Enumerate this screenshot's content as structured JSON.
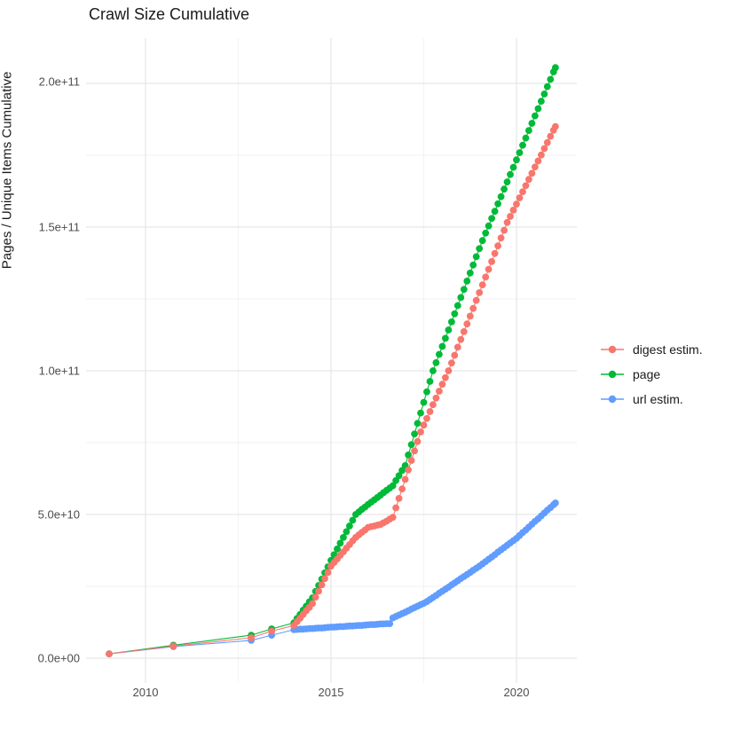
{
  "title": "Crawl Size Cumulative",
  "axes": {
    "y_title": "Pages / Unique Items Cumulative",
    "x_tick_labels": [
      "2010",
      "2015",
      "2020"
    ],
    "y_tick_labels": [
      "0.0e+00",
      "5.0e+10",
      "1.0e+11",
      "1.5e+11",
      "2.0e+11"
    ]
  },
  "legend": {
    "items": [
      {
        "label": "digest estim.",
        "color": "#F8766D"
      },
      {
        "label": "page",
        "color": "#00BA38"
      },
      {
        "label": "url estim.",
        "color": "#619CFF"
      }
    ]
  },
  "style": {
    "background": "#ffffff",
    "major_grid_color": "#e7e7e7",
    "minor_grid_color": "#f2f2f2",
    "tick_text_color": "#4d4d4d",
    "title_color": "#1a1a1a"
  },
  "chart_data": {
    "type": "scatter",
    "title": "Crawl Size Cumulative",
    "xlabel": "",
    "ylabel": "Pages / Unique Items Cumulative",
    "legend_position": "right",
    "grid": true,
    "value_unit": 1000000000.0,
    "x_axis": {
      "major_ticks": [
        2010,
        2015,
        2020
      ],
      "minor_ticks": [
        2012.5,
        2017.5
      ],
      "range": [
        2008.4,
        2021.6
      ]
    },
    "y_axis": {
      "major_ticks_e9": [
        0,
        50,
        100,
        150,
        200
      ],
      "minor_ticks_e9": [
        25,
        75,
        125,
        175
      ],
      "range_e9": [
        -9,
        216
      ],
      "tick_labels": [
        "0.0e+00",
        "5.0e+10",
        "1.0e+11",
        "1.5e+11",
        "2.0e+11"
      ]
    },
    "series": [
      {
        "name": "page",
        "color": "#00BA38",
        "points_year_e9": [
          [
            2009.02,
            1.5
          ],
          [
            2010.75,
            4.5
          ],
          [
            2012.85,
            8.0
          ],
          [
            2013.4,
            10.2
          ],
          [
            2014.0,
            12.3
          ],
          [
            2014.083,
            13.8
          ],
          [
            2014.167,
            15.2
          ],
          [
            2014.25,
            16.7
          ],
          [
            2014.333,
            18.1
          ],
          [
            2014.417,
            19.6
          ],
          [
            2014.5,
            21.0
          ],
          [
            2014.583,
            23.2
          ],
          [
            2014.667,
            25.3
          ],
          [
            2014.75,
            27.5
          ],
          [
            2014.833,
            29.7
          ],
          [
            2014.917,
            31.8
          ],
          [
            2015.0,
            34.0
          ],
          [
            2015.083,
            36.0
          ],
          [
            2015.167,
            38.0
          ],
          [
            2015.25,
            40.0
          ],
          [
            2015.333,
            42.0
          ],
          [
            2015.417,
            44.0
          ],
          [
            2015.5,
            46.0
          ],
          [
            2015.583,
            48.0
          ],
          [
            2015.667,
            50.0
          ],
          [
            2015.75,
            50.9
          ],
          [
            2015.833,
            51.8
          ],
          [
            2015.917,
            52.6
          ],
          [
            2016.0,
            53.5
          ],
          [
            2016.083,
            54.3
          ],
          [
            2016.167,
            55.1
          ],
          [
            2016.25,
            55.9
          ],
          [
            2016.333,
            56.7
          ],
          [
            2016.417,
            57.6
          ],
          [
            2016.5,
            58.4
          ],
          [
            2016.583,
            59.2
          ],
          [
            2016.667,
            60.0
          ],
          [
            2016.75,
            61.8
          ],
          [
            2016.833,
            63.5
          ],
          [
            2016.917,
            65.3
          ],
          [
            2017.0,
            67.0
          ],
          [
            2017.083,
            70.7
          ],
          [
            2017.167,
            74.3
          ],
          [
            2017.25,
            78.0
          ],
          [
            2017.333,
            81.7
          ],
          [
            2017.417,
            85.3
          ],
          [
            2017.5,
            89.0
          ],
          [
            2017.583,
            92.7
          ],
          [
            2017.667,
            96.3
          ],
          [
            2017.75,
            100.0
          ],
          [
            2017.833,
            102.8
          ],
          [
            2017.917,
            105.7
          ],
          [
            2018.0,
            108.5
          ],
          [
            2018.083,
            111.3
          ],
          [
            2018.167,
            114.2
          ],
          [
            2018.25,
            117.0
          ],
          [
            2018.333,
            119.8
          ],
          [
            2018.417,
            122.7
          ],
          [
            2018.5,
            125.5
          ],
          [
            2018.583,
            128.3
          ],
          [
            2018.667,
            131.2
          ],
          [
            2018.75,
            134.0
          ],
          [
            2018.833,
            136.8
          ],
          [
            2018.917,
            139.7
          ],
          [
            2019.0,
            142.5
          ],
          [
            2019.083,
            145.3
          ],
          [
            2019.167,
            147.9
          ],
          [
            2019.25,
            150.4
          ],
          [
            2019.333,
            153.0
          ],
          [
            2019.417,
            155.5
          ],
          [
            2019.5,
            158.1
          ],
          [
            2019.583,
            160.6
          ],
          [
            2019.667,
            163.2
          ],
          [
            2019.75,
            165.7
          ],
          [
            2019.833,
            168.3
          ],
          [
            2019.917,
            170.8
          ],
          [
            2020.0,
            173.4
          ],
          [
            2020.083,
            175.9
          ],
          [
            2020.167,
            178.5
          ],
          [
            2020.25,
            181.0
          ],
          [
            2020.333,
            183.6
          ],
          [
            2020.417,
            186.1
          ],
          [
            2020.5,
            188.7
          ],
          [
            2020.583,
            191.2
          ],
          [
            2020.667,
            193.8
          ],
          [
            2020.75,
            196.3
          ],
          [
            2020.833,
            198.9
          ],
          [
            2020.917,
            201.4
          ],
          [
            2021.0,
            204.0
          ],
          [
            2021.05,
            205.5
          ]
        ]
      },
      {
        "name": "url estim.",
        "color": "#619CFF",
        "points_year_e9": [
          [
            2009.02,
            1.5
          ],
          [
            2010.75,
            4.0
          ],
          [
            2012.85,
            6.2
          ],
          [
            2013.4,
            8.0
          ],
          [
            2014.0,
            9.9
          ],
          [
            2014.083,
            10.0
          ],
          [
            2014.167,
            10.1
          ],
          [
            2014.25,
            10.1
          ],
          [
            2014.333,
            10.2
          ],
          [
            2014.417,
            10.3
          ],
          [
            2014.5,
            10.3
          ],
          [
            2014.583,
            10.4
          ],
          [
            2014.667,
            10.5
          ],
          [
            2014.75,
            10.5
          ],
          [
            2014.833,
            10.6
          ],
          [
            2014.917,
            10.7
          ],
          [
            2015.0,
            10.8
          ],
          [
            2015.083,
            10.8
          ],
          [
            2015.167,
            10.9
          ],
          [
            2015.25,
            11.0
          ],
          [
            2015.333,
            11.0
          ],
          [
            2015.417,
            11.1
          ],
          [
            2015.5,
            11.2
          ],
          [
            2015.583,
            11.2
          ],
          [
            2015.667,
            11.3
          ],
          [
            2015.75,
            11.4
          ],
          [
            2015.833,
            11.4
          ],
          [
            2015.917,
            11.5
          ],
          [
            2016.0,
            11.6
          ],
          [
            2016.083,
            11.7
          ],
          [
            2016.167,
            11.7
          ],
          [
            2016.25,
            11.8
          ],
          [
            2016.333,
            11.9
          ],
          [
            2016.417,
            11.9
          ],
          [
            2016.5,
            12.0
          ],
          [
            2016.583,
            12.0
          ],
          [
            2016.667,
            14.0
          ],
          [
            2016.75,
            14.5
          ],
          [
            2016.833,
            15.0
          ],
          [
            2016.917,
            15.5
          ],
          [
            2017.0,
            16.0
          ],
          [
            2017.083,
            16.5
          ],
          [
            2017.167,
            17.1
          ],
          [
            2017.25,
            17.6
          ],
          [
            2017.333,
            18.1
          ],
          [
            2017.417,
            18.6
          ],
          [
            2017.5,
            19.1
          ],
          [
            2017.583,
            19.7
          ],
          [
            2017.667,
            20.4
          ],
          [
            2017.75,
            21.1
          ],
          [
            2017.833,
            21.8
          ],
          [
            2017.917,
            22.6
          ],
          [
            2018.0,
            23.3
          ],
          [
            2018.083,
            24.0
          ],
          [
            2018.167,
            24.7
          ],
          [
            2018.25,
            25.5
          ],
          [
            2018.333,
            26.2
          ],
          [
            2018.417,
            26.9
          ],
          [
            2018.5,
            27.7
          ],
          [
            2018.583,
            28.4
          ],
          [
            2018.667,
            29.1
          ],
          [
            2018.75,
            29.8
          ],
          [
            2018.833,
            30.6
          ],
          [
            2018.917,
            31.3
          ],
          [
            2019.0,
            32.0
          ],
          [
            2019.083,
            32.8
          ],
          [
            2019.167,
            33.6
          ],
          [
            2019.25,
            34.4
          ],
          [
            2019.333,
            35.2
          ],
          [
            2019.417,
            36.0
          ],
          [
            2019.5,
            36.9
          ],
          [
            2019.583,
            37.7
          ],
          [
            2019.667,
            38.5
          ],
          [
            2019.75,
            39.3
          ],
          [
            2019.833,
            40.1
          ],
          [
            2019.917,
            40.9
          ],
          [
            2020.0,
            41.7
          ],
          [
            2020.083,
            42.7
          ],
          [
            2020.167,
            43.7
          ],
          [
            2020.25,
            44.6
          ],
          [
            2020.333,
            45.6
          ],
          [
            2020.417,
            46.6
          ],
          [
            2020.5,
            47.6
          ],
          [
            2020.583,
            48.5
          ],
          [
            2020.667,
            49.5
          ],
          [
            2020.75,
            50.5
          ],
          [
            2020.833,
            51.5
          ],
          [
            2020.917,
            52.4
          ],
          [
            2021.0,
            53.4
          ],
          [
            2021.05,
            54.0
          ]
        ]
      },
      {
        "name": "digest estim.",
        "color": "#F8766D",
        "points_year_e9": [
          [
            2009.02,
            1.5
          ],
          [
            2010.75,
            4.2
          ],
          [
            2012.85,
            7.1
          ],
          [
            2013.4,
            9.4
          ],
          [
            2014.0,
            11.4
          ],
          [
            2014.083,
            12.7
          ],
          [
            2014.167,
            13.9
          ],
          [
            2014.25,
            15.2
          ],
          [
            2014.333,
            16.5
          ],
          [
            2014.417,
            17.7
          ],
          [
            2014.5,
            19.0
          ],
          [
            2014.583,
            21.2
          ],
          [
            2014.667,
            23.3
          ],
          [
            2014.75,
            25.5
          ],
          [
            2014.833,
            27.7
          ],
          [
            2014.917,
            29.8
          ],
          [
            2015.0,
            32.0
          ],
          [
            2015.083,
            33.3
          ],
          [
            2015.167,
            34.5
          ],
          [
            2015.25,
            35.8
          ],
          [
            2015.333,
            37.0
          ],
          [
            2015.417,
            38.3
          ],
          [
            2015.5,
            39.5
          ],
          [
            2015.583,
            40.8
          ],
          [
            2015.667,
            42.0
          ],
          [
            2015.75,
            42.9
          ],
          [
            2015.833,
            43.8
          ],
          [
            2015.917,
            44.6
          ],
          [
            2016.0,
            45.5
          ],
          [
            2016.083,
            45.8
          ],
          [
            2016.167,
            46.0
          ],
          [
            2016.25,
            46.3
          ],
          [
            2016.333,
            46.5
          ],
          [
            2016.417,
            47.1
          ],
          [
            2016.5,
            47.7
          ],
          [
            2016.583,
            48.4
          ],
          [
            2016.667,
            49.0
          ],
          [
            2016.75,
            52.3
          ],
          [
            2016.833,
            55.6
          ],
          [
            2016.917,
            58.9
          ],
          [
            2017.0,
            62.2
          ],
          [
            2017.083,
            65.5
          ],
          [
            2017.167,
            68.8
          ],
          [
            2017.25,
            72.1
          ],
          [
            2017.333,
            75.4
          ],
          [
            2017.417,
            78.7
          ],
          [
            2017.5,
            81.1
          ],
          [
            2017.583,
            83.4
          ],
          [
            2017.667,
            85.8
          ],
          [
            2017.75,
            88.2
          ],
          [
            2017.833,
            90.5
          ],
          [
            2017.917,
            92.9
          ],
          [
            2018.0,
            95.3
          ],
          [
            2018.083,
            97.6
          ],
          [
            2018.167,
            100.0
          ],
          [
            2018.25,
            102.7
          ],
          [
            2018.333,
            105.4
          ],
          [
            2018.417,
            108.2
          ],
          [
            2018.5,
            110.9
          ],
          [
            2018.583,
            113.6
          ],
          [
            2018.667,
            116.3
          ],
          [
            2018.75,
            119.0
          ],
          [
            2018.833,
            121.7
          ],
          [
            2018.917,
            124.5
          ],
          [
            2019.0,
            127.2
          ],
          [
            2019.083,
            129.9
          ],
          [
            2019.167,
            132.6
          ],
          [
            2019.25,
            135.3
          ],
          [
            2019.333,
            138.0
          ],
          [
            2019.417,
            140.8
          ],
          [
            2019.5,
            143.5
          ],
          [
            2019.583,
            146.2
          ],
          [
            2019.667,
            148.9
          ],
          [
            2019.75,
            151.6
          ],
          [
            2019.833,
            153.7
          ],
          [
            2019.917,
            155.9
          ],
          [
            2020.0,
            158.0
          ],
          [
            2020.083,
            160.2
          ],
          [
            2020.167,
            162.3
          ],
          [
            2020.25,
            164.4
          ],
          [
            2020.333,
            166.6
          ],
          [
            2020.417,
            168.7
          ],
          [
            2020.5,
            170.9
          ],
          [
            2020.583,
            173.0
          ],
          [
            2020.667,
            175.1
          ],
          [
            2020.75,
            177.3
          ],
          [
            2020.833,
            179.4
          ],
          [
            2020.917,
            181.6
          ],
          [
            2021.0,
            183.7
          ],
          [
            2021.05,
            185.0
          ]
        ]
      }
    ]
  }
}
